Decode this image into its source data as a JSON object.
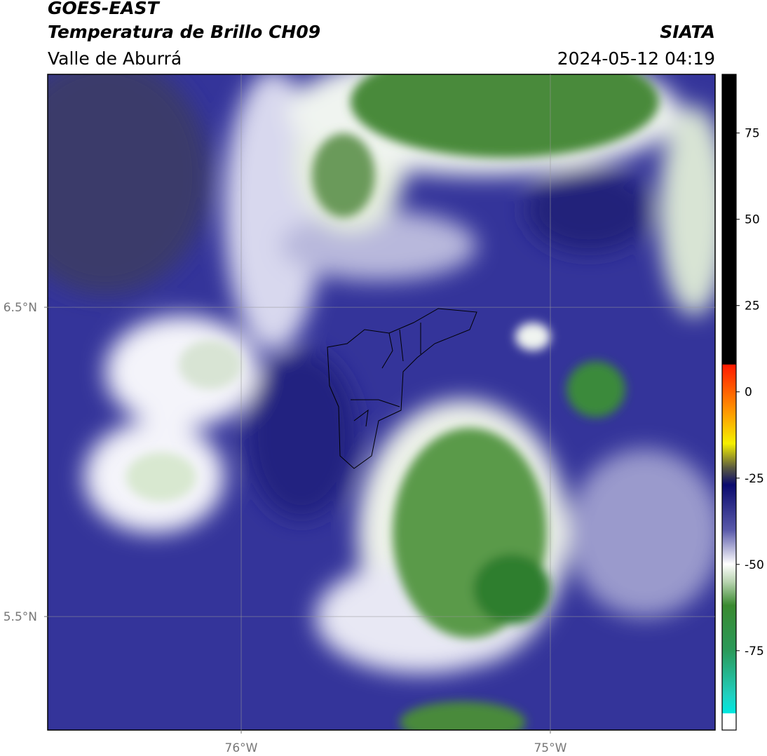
{
  "header": {
    "title": "GOES-EAST",
    "subtitle": "Temperatura de Brillo CH09",
    "region": "Valle de Aburrá",
    "source": "SIATA",
    "datetime": "2024-05-12 04:19"
  },
  "map": {
    "xlim": [
      -76.626,
      -74.467
    ],
    "ylim": [
      5.133,
      7.253
    ],
    "xticks": [
      {
        "value": -76,
        "label": "76°W"
      },
      {
        "value": -75,
        "label": "75°W"
      }
    ],
    "yticks": [
      {
        "value": 6.5,
        "label": "6.5°N"
      },
      {
        "value": 5.5,
        "label": "5.5°N"
      }
    ],
    "grid": true
  },
  "colorbar": {
    "clim": [
      -98,
      92
    ],
    "ticks": [
      75,
      50,
      25,
      0,
      -25,
      -50,
      -75
    ]
  }
}
